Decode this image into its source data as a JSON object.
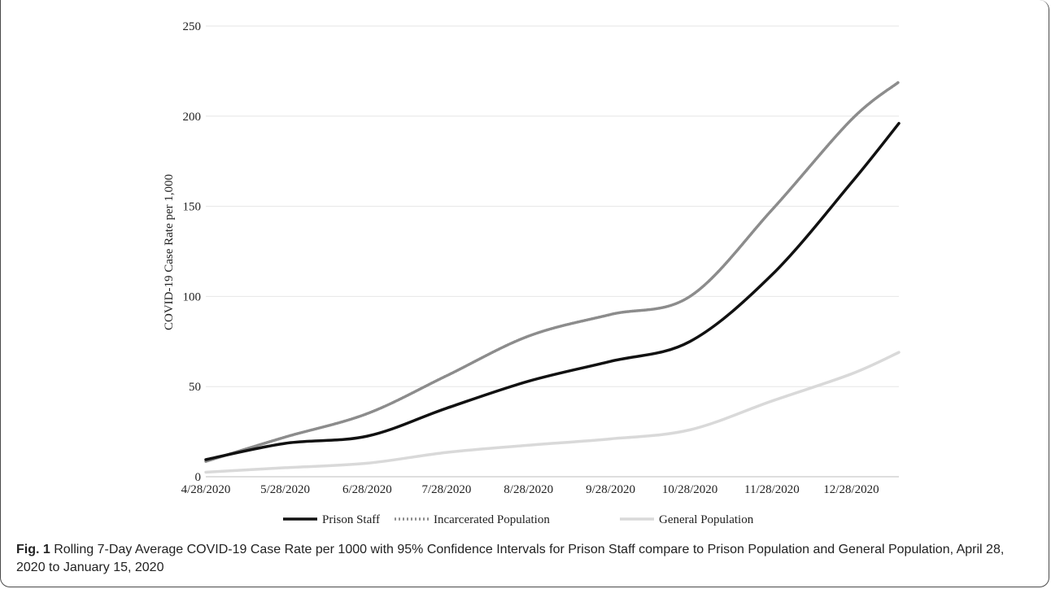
{
  "chart_data": {
    "type": "line",
    "ylabel": "COVID-19 Case Rate per 1,000",
    "xlabel": "",
    "ylim": [
      0,
      250
    ],
    "yticks": [
      0,
      50,
      100,
      150,
      200,
      250
    ],
    "x_tick_labels": [
      "4/28/2020",
      "5/28/2020",
      "6/28/2020",
      "7/28/2020",
      "8/28/2020",
      "9/28/2020",
      "10/28/2020",
      "11/28/2020",
      "12/28/2020"
    ],
    "x": [
      "4/28/2020",
      "5/28/2020",
      "6/28/2020",
      "7/28/2020",
      "8/28/2020",
      "9/28/2020",
      "10/28/2020",
      "11/28/2020",
      "12/28/2020",
      "1/15/2021"
    ],
    "grid": true,
    "legend_position": "bottom",
    "series": [
      {
        "name": "Prison Staff",
        "color": "#111111",
        "style": "solid",
        "values": [
          9.5,
          18.5,
          22.5,
          38,
          53,
          64,
          75,
          112,
          163,
          196
        ]
      },
      {
        "name": "Incarcerated Population",
        "color": "#8c8c8c",
        "style": "dotted",
        "values": [
          8.5,
          22,
          35,
          56,
          78,
          90,
          100,
          148,
          198,
          219
        ]
      },
      {
        "name": "General Population",
        "color": "#d9d9d9",
        "style": "solid",
        "values": [
          2.5,
          5,
          7.5,
          13.5,
          17.5,
          21,
          26,
          42,
          57,
          69
        ]
      }
    ]
  },
  "caption": {
    "label": "Fig. 1",
    "text": " Rolling 7-Day Average COVID-19 Case Rate per 1000 with 95% Confidence Intervals for Prison Staff compare to Prison Population and General Population, April 28, 2020 to January 15, 2020"
  }
}
